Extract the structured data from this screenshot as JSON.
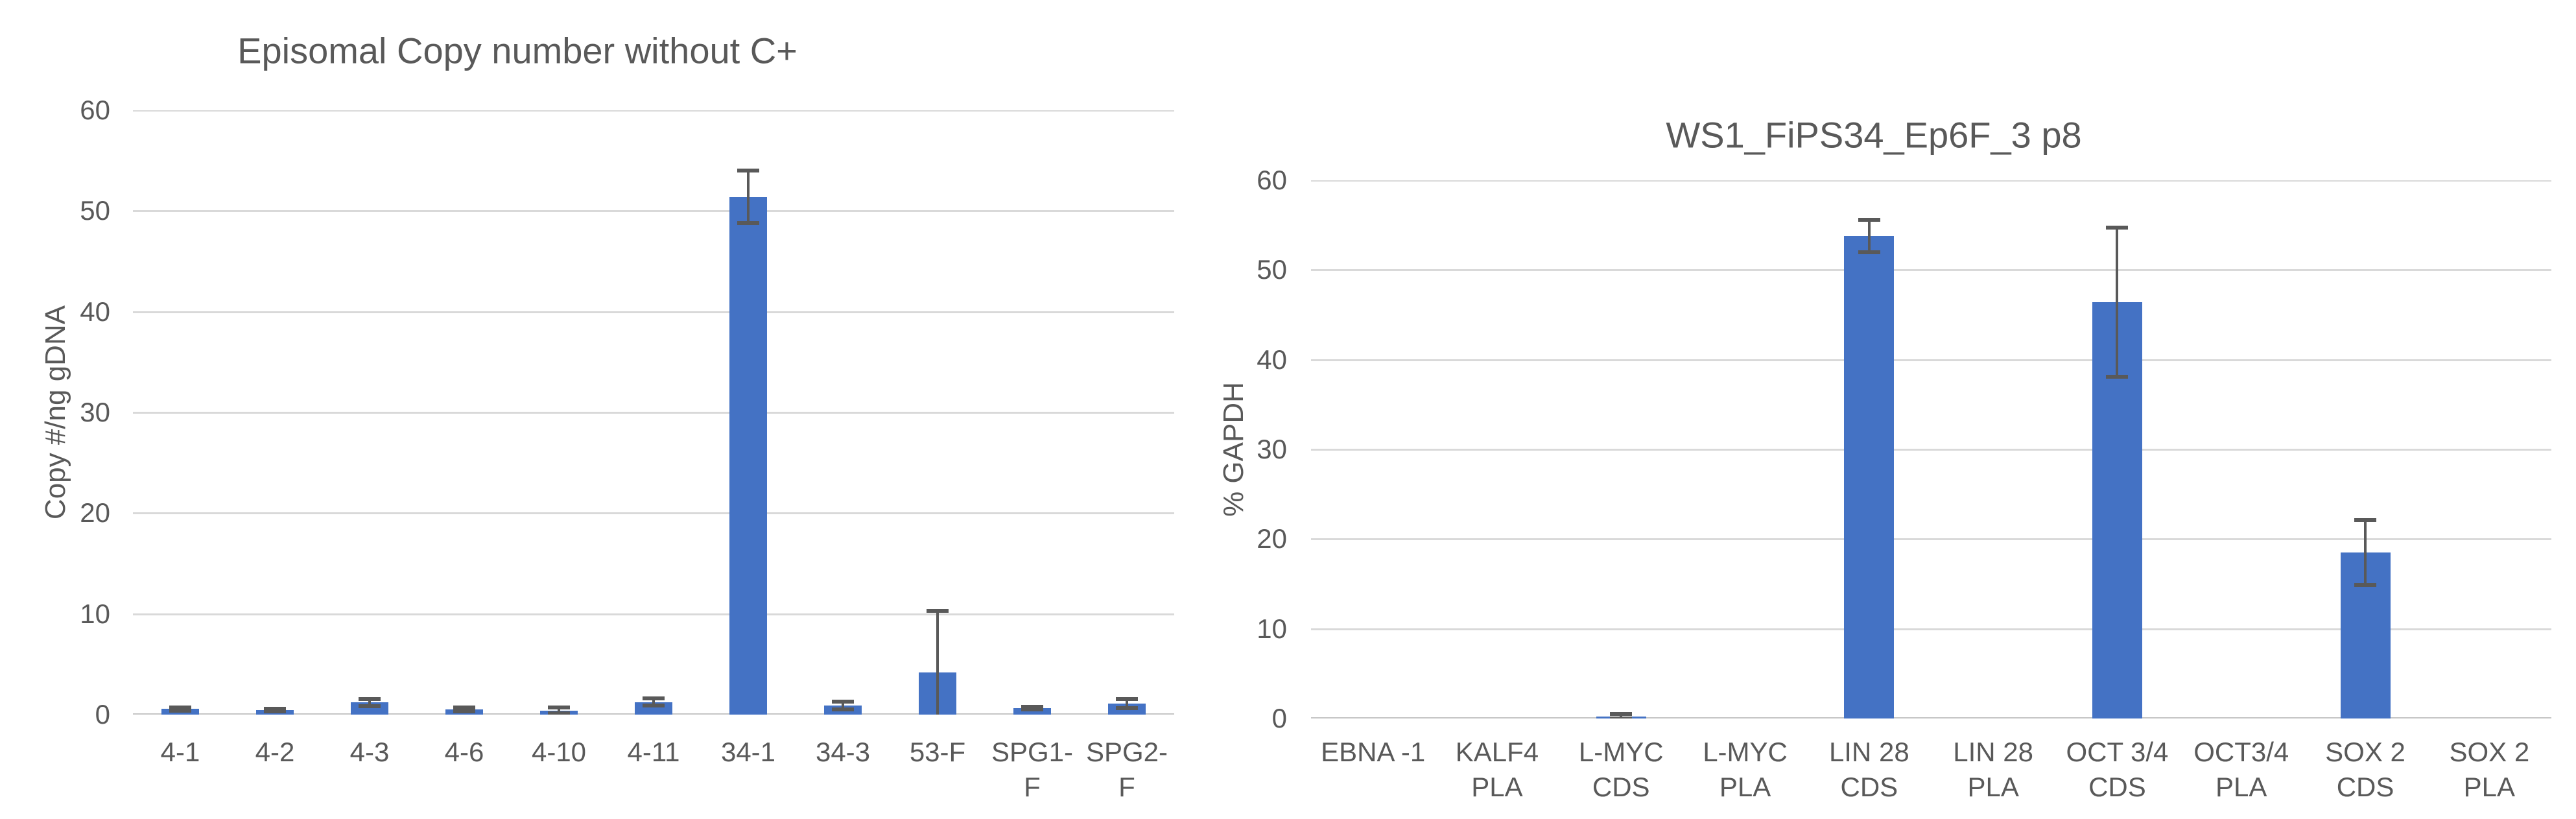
{
  "page": {
    "background_color": "#FFFFFF",
    "description": "Two Excel-style bar charts side by side on a white sheet"
  },
  "chart_data": [
    {
      "type": "bar",
      "title": "Episomal Copy number without C+",
      "xlabel": "",
      "ylabel": "Copy #/ng gDNA",
      "categories": [
        "4-1",
        "4-2",
        "4-3",
        "4-6",
        "4-10",
        "4-11",
        "34-1",
        "34-3",
        "53-F",
        "SPG1-F",
        "SPG2-F"
      ],
      "values": [
        0.55,
        0.45,
        1.2,
        0.5,
        0.4,
        1.25,
        51.4,
        0.9,
        4.2,
        0.65,
        1.1
      ],
      "error_bars": [
        0.15,
        0.12,
        0.35,
        0.2,
        0.3,
        0.35,
        2.6,
        0.4,
        6.1,
        0.12,
        0.45
      ],
      "ylim": [
        0,
        60
      ],
      "ytick_step": 10,
      "ytick_labels": [
        "0",
        "10",
        "20",
        "30",
        "40",
        "50",
        "60"
      ],
      "grid": true,
      "legend": false,
      "bar_color": "#4472C4",
      "error_bar_color": "#595959",
      "gridline_color": "#D9D9D9",
      "axis_line_color": "#C6C6C6",
      "text_color": "#595959"
    },
    {
      "type": "bar",
      "title": "WS1_FiPS34_Ep6F_3 p8",
      "xlabel": "",
      "ylabel": "% GAPDH",
      "categories": [
        "EBNA -1",
        "KALF4 PLA",
        "L-MYC CDS",
        "L-MYC PLA",
        "LIN 28 CDS",
        "LIN 28 PLA",
        "OCT 3/4\nCDS",
        "OCT3/4\nPLA",
        "SOX 2 CDS",
        "SOX 2 PLA"
      ],
      "values": [
        0,
        0,
        0.25,
        0,
        53.8,
        0,
        46.4,
        0,
        18.5,
        0
      ],
      "error_bars": [
        0,
        0,
        0.25,
        0,
        1.8,
        0,
        8.3,
        0,
        3.6,
        0
      ],
      "ylim": [
        0,
        60
      ],
      "ytick_step": 10,
      "ytick_labels": [
        "0",
        "10",
        "20",
        "30",
        "40",
        "50",
        "60"
      ],
      "grid": true,
      "legend": false,
      "bar_color": "#4472C4",
      "error_bar_color": "#595959",
      "gridline_color": "#D9D9D9",
      "axis_line_color": "#C6C6C6",
      "text_color": "#595959"
    }
  ]
}
